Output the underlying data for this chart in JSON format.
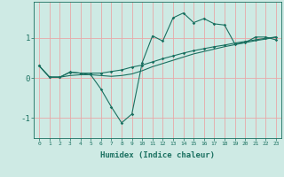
{
  "xlabel": "Humidex (Indice chaleur)",
  "x": [
    0,
    1,
    2,
    3,
    4,
    5,
    6,
    7,
    8,
    9,
    10,
    11,
    12,
    13,
    14,
    15,
    16,
    17,
    18,
    19,
    20,
    21,
    22,
    23
  ],
  "line1": [
    0.3,
    0.02,
    0.02,
    0.15,
    0.12,
    0.08,
    -0.28,
    -0.72,
    -1.12,
    -0.9,
    0.38,
    1.05,
    0.92,
    1.5,
    1.62,
    1.38,
    1.48,
    1.35,
    1.32,
    0.85,
    0.88,
    1.02,
    1.02,
    0.95
  ],
  "line2": [
    0.3,
    0.02,
    0.02,
    0.14,
    0.12,
    0.12,
    0.12,
    0.16,
    0.2,
    0.27,
    0.32,
    0.4,
    0.48,
    0.55,
    0.62,
    0.68,
    0.73,
    0.78,
    0.82,
    0.87,
    0.91,
    0.95,
    0.99,
    1.02
  ],
  "line3": [
    0.3,
    0.02,
    0.02,
    0.06,
    0.08,
    0.08,
    0.06,
    0.04,
    0.06,
    0.1,
    0.18,
    0.28,
    0.36,
    0.44,
    0.52,
    0.6,
    0.66,
    0.72,
    0.78,
    0.83,
    0.88,
    0.93,
    0.97,
    1.02
  ],
  "bg_color": "#ceeae4",
  "grid_color": "#e8a8a8",
  "line_color": "#1a7060",
  "ylim": [
    -1.5,
    1.9
  ],
  "yticks": [
    -1,
    0,
    1
  ],
  "xlim": [
    -0.5,
    23.5
  ]
}
